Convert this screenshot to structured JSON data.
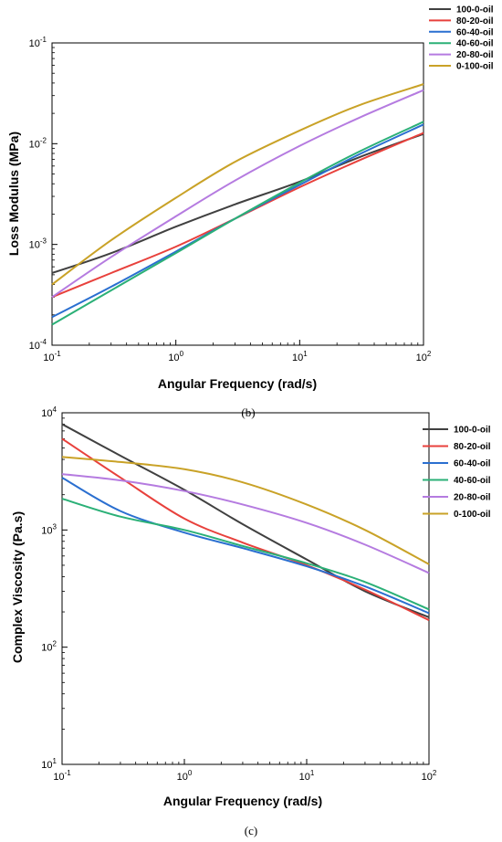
{
  "chart_data": [
    {
      "type": "line",
      "panel_label": "(b)",
      "xlabel": "Angular Frequency (rad/s)",
      "ylabel": "Loss Modulus (MPa)",
      "xscale": "log",
      "yscale": "log",
      "xlim": [
        0.1,
        100
      ],
      "ylim": [
        0.0001,
        0.1
      ],
      "xticks": [
        {
          "value": 0.1,
          "base": "10",
          "exp": "-1"
        },
        {
          "value": 1,
          "base": "10",
          "exp": "0"
        },
        {
          "value": 10,
          "base": "10",
          "exp": "1"
        },
        {
          "value": 100,
          "base": "10",
          "exp": "2"
        }
      ],
      "yticks": [
        {
          "value": 0.0001,
          "base": "10",
          "exp": "-4"
        },
        {
          "value": 0.001,
          "base": "10",
          "exp": "-3"
        },
        {
          "value": 0.01,
          "base": "10",
          "exp": "-2"
        },
        {
          "value": 0.1,
          "base": "10",
          "exp": "-1"
        }
      ],
      "grid": false,
      "legend_position": "top-right",
      "series": [
        {
          "name": "100-0-oil",
          "color": "#404040",
          "x": [
            0.1,
            0.3,
            1,
            3,
            10,
            30,
            100
          ],
          "y": [
            0.00052,
            0.00082,
            0.0015,
            0.0025,
            0.0042,
            0.0073,
            0.0125
          ]
        },
        {
          "name": "80-20-oil",
          "color": "#e8413c",
          "x": [
            0.1,
            0.3,
            1,
            3,
            10,
            30,
            100
          ],
          "y": [
            0.0003,
            0.00052,
            0.00095,
            0.0018,
            0.0037,
            0.0068,
            0.0128
          ]
        },
        {
          "name": "60-40-oil",
          "color": "#2a6fd0",
          "x": [
            0.1,
            0.3,
            1,
            3,
            10,
            30,
            100
          ],
          "y": [
            0.00019,
            0.00038,
            0.00085,
            0.0018,
            0.0039,
            0.0078,
            0.0155
          ]
        },
        {
          "name": "40-60-oil",
          "color": "#2bb077",
          "x": [
            0.1,
            0.3,
            1,
            3,
            10,
            30,
            100
          ],
          "y": [
            0.00016,
            0.00035,
            0.00082,
            0.0018,
            0.0041,
            0.0083,
            0.0165
          ]
        },
        {
          "name": "20-80-oil",
          "color": "#b57be0",
          "x": [
            0.1,
            0.3,
            1,
            3,
            10,
            30,
            100
          ],
          "y": [
            0.0003,
            0.00075,
            0.0019,
            0.0043,
            0.0095,
            0.018,
            0.034
          ]
        },
        {
          "name": "0-100-oil",
          "color": "#c9a227",
          "x": [
            0.1,
            0.3,
            1,
            3,
            10,
            30,
            100
          ],
          "y": [
            0.0004,
            0.0011,
            0.0029,
            0.0066,
            0.0135,
            0.024,
            0.039
          ]
        }
      ]
    },
    {
      "type": "line",
      "panel_label": "(c)",
      "xlabel": "Angular Frequency (rad/s)",
      "ylabel": "Complex Viscosity (Pa.s)",
      "xscale": "log",
      "yscale": "log",
      "xlim": [
        0.1,
        100
      ],
      "ylim": [
        10,
        10000
      ],
      "xticks": [
        {
          "value": 0.1,
          "base": "10",
          "exp": "-1"
        },
        {
          "value": 1,
          "base": "10",
          "exp": "0"
        },
        {
          "value": 10,
          "base": "10",
          "exp": "1"
        },
        {
          "value": 100,
          "base": "10",
          "exp": "2"
        }
      ],
      "yticks": [
        {
          "value": 10,
          "base": "10",
          "exp": "1"
        },
        {
          "value": 100,
          "base": "10",
          "exp": "2"
        },
        {
          "value": 1000,
          "base": "10",
          "exp": "3"
        },
        {
          "value": 10000,
          "base": "10",
          "exp": "4"
        }
      ],
      "grid": false,
      "legend_position": "top-right",
      "series": [
        {
          "name": "100-0-oil",
          "color": "#404040",
          "x": [
            0.1,
            0.3,
            1,
            3,
            10,
            30,
            100
          ],
          "y": [
            8000,
            4300,
            2200,
            1120,
            560,
            300,
            180
          ]
        },
        {
          "name": "80-20-oil",
          "color": "#e8413c",
          "x": [
            0.1,
            0.3,
            1,
            3,
            10,
            30,
            100
          ],
          "y": [
            6000,
            2800,
            1250,
            780,
            500,
            310,
            170
          ]
        },
        {
          "name": "60-40-oil",
          "color": "#2a6fd0",
          "x": [
            0.1,
            0.3,
            1,
            3,
            10,
            30,
            100
          ],
          "y": [
            2800,
            1450,
            950,
            700,
            490,
            330,
            195
          ]
        },
        {
          "name": "40-60-oil",
          "color": "#2bb077",
          "x": [
            0.1,
            0.3,
            1,
            3,
            10,
            30,
            100
          ],
          "y": [
            1850,
            1300,
            1000,
            730,
            520,
            360,
            210
          ]
        },
        {
          "name": "20-80-oil",
          "color": "#b57be0",
          "x": [
            0.1,
            0.3,
            1,
            3,
            10,
            30,
            100
          ],
          "y": [
            3000,
            2650,
            2150,
            1650,
            1150,
            750,
            430
          ]
        },
        {
          "name": "0-100-oil",
          "color": "#c9a227",
          "x": [
            0.1,
            0.3,
            1,
            3,
            10,
            30,
            100
          ],
          "y": [
            4200,
            3800,
            3300,
            2550,
            1650,
            1000,
            510
          ]
        }
      ]
    }
  ]
}
